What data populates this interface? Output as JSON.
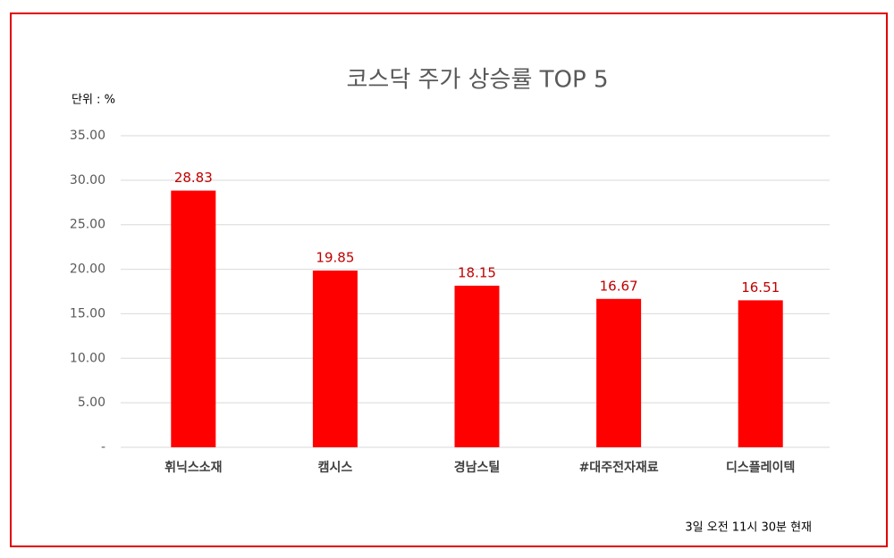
{
  "chart_data": {
    "type": "bar",
    "title": "코스닥 주가 상승률 TOP 5",
    "unit_label": "단위 : %",
    "note": "3일 오전 11시 30분 현재",
    "categories": [
      "휘닉스소재",
      "캠시스",
      "경남스틸",
      "#대주전자재료",
      "디스플레이텍"
    ],
    "values": [
      28.83,
      19.85,
      18.15,
      16.67,
      16.51
    ],
    "color": "#ff0000",
    "ylim": [
      0,
      35
    ],
    "yticks": [
      {
        "value": 0,
        "label": "-"
      },
      {
        "value": 5,
        "label": "5.00"
      },
      {
        "value": 10,
        "label": "10.00"
      },
      {
        "value": 15,
        "label": "15.00"
      },
      {
        "value": 20,
        "label": "20.00"
      },
      {
        "value": 25,
        "label": "25.00"
      },
      {
        "value": 30,
        "label": "30.00"
      },
      {
        "value": 35,
        "label": "35.00"
      }
    ],
    "grid": true
  }
}
